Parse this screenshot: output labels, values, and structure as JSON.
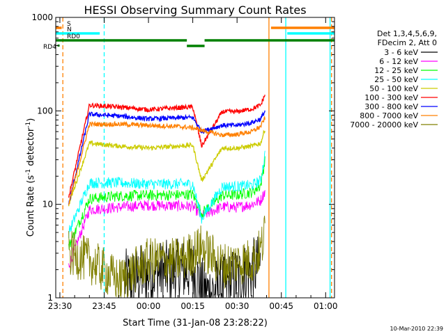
{
  "chart_data": {
    "type": "line",
    "title": "HESSI Observing Summary Count Rates",
    "xlabel": "Start Time (31-Jan-08 23:28:22)",
    "ylabel": "Count Rate (s",
    "ylabel_sup1": "-1",
    "ylabel_mid": " detector",
    "ylabel_sup2": "-1",
    "ylabel_end": ")",
    "yscale": "log",
    "ylim": [
      1,
      1000
    ],
    "xlim_minutes": [
      -1.4,
      93.0
    ],
    "x_ticks": [
      {
        "m": 0,
        "label": "23:30"
      },
      {
        "m": 15,
        "label": "23:45"
      },
      {
        "m": 30,
        "label": "00:00"
      },
      {
        "m": 45,
        "label": "00:15"
      },
      {
        "m": 60,
        "label": "00:30"
      },
      {
        "m": 75,
        "label": "00:45"
      },
      {
        "m": 90,
        "label": "01:00"
      }
    ],
    "y_ticks": [
      {
        "v": 1,
        "label": "1"
      },
      {
        "v": 10,
        "label": "10"
      },
      {
        "v": 100,
        "label": "100"
      },
      {
        "v": 1000,
        "label": "1000"
      }
    ],
    "legend_title": [
      "Det 1,3,4,5,6,9,",
      "FDecim 2, Att 0"
    ],
    "legend_placement": "right",
    "series": [
      {
        "name": "3 - 6 keV",
        "color": "#000000",
        "x": [
          22,
          30,
          45,
          49,
          55,
          60,
          68
        ],
        "y": [
          1.5,
          1.8,
          2.0,
          1.1,
          1.3,
          1.6,
          2.2
        ]
      },
      {
        "name": "6 - 12 keV",
        "color": "#ff00ff",
        "x": [
          3,
          10,
          20,
          30,
          40,
          45,
          48,
          55,
          60,
          65,
          68,
          69.5
        ],
        "y": [
          2.2,
          8.8,
          9.3,
          9.8,
          9.6,
          9.5,
          7.5,
          9.4,
          9.3,
          10,
          11,
          14
        ]
      },
      {
        "name": "12 - 25 keV",
        "color": "#00ff00",
        "x": [
          3,
          10,
          20,
          30,
          40,
          45,
          48,
          55,
          60,
          65,
          68,
          69.5
        ],
        "y": [
          3.5,
          11.5,
          12.3,
          12.5,
          12.6,
          12.8,
          8.0,
          12.5,
          12.6,
          13.5,
          16,
          30
        ]
      },
      {
        "name": "25 - 50 keV",
        "color": "#00ffff",
        "x": [
          3,
          10,
          20,
          30,
          40,
          45,
          48,
          55,
          60,
          65,
          68,
          69.5
        ],
        "y": [
          5.0,
          17,
          17,
          16.5,
          16.5,
          16.5,
          7.0,
          15.5,
          15.5,
          16,
          18,
          35
        ]
      },
      {
        "name": "50 - 100 keV",
        "color": "#cccc00",
        "x": [
          3,
          10,
          20,
          30,
          40,
          45,
          48,
          55,
          60,
          65,
          68,
          69.5
        ],
        "y": [
          10,
          45,
          42,
          40,
          42,
          43,
          18,
          40,
          40,
          42,
          45,
          65
        ]
      },
      {
        "name": "100 - 300 keV",
        "color": "#ff0000",
        "x": [
          3,
          10,
          20,
          30,
          40,
          45,
          48,
          55,
          60,
          65,
          68,
          69.5
        ],
        "y": [
          12,
          115,
          110,
          103,
          108,
          110,
          42,
          98,
          98,
          105,
          115,
          150
        ]
      },
      {
        "name": "300 - 800 keV",
        "color": "#0000ff",
        "x": [
          3,
          10,
          20,
          30,
          40,
          45,
          48,
          55,
          60,
          65,
          68,
          69.5
        ],
        "y": [
          10,
          92,
          88,
          82,
          84,
          85,
          60,
          70,
          70,
          75,
          82,
          100
        ]
      },
      {
        "name": "800 - 7000 keV",
        "color": "#ff8000",
        "x": [
          3,
          10,
          20,
          30,
          40,
          45,
          48,
          55,
          60,
          65,
          68,
          69.5
        ],
        "y": [
          10,
          72,
          72,
          70,
          68,
          66,
          62,
          55,
          56,
          60,
          68,
          85
        ]
      },
      {
        "name": "7000 - 20000 keV",
        "color": "#808000",
        "x": [
          3,
          10,
          20,
          30,
          40,
          45,
          48,
          55,
          60,
          65,
          68,
          69.5
        ],
        "y": [
          3.0,
          2.5,
          1.5,
          2.5,
          2.5,
          3.0,
          3.5,
          2.2,
          2.4,
          2.5,
          3.2,
          5.0
        ]
      }
    ],
    "flags": [
      {
        "label": "S",
        "color": "#ff8000",
        "segments": [
          [
            -1.4,
            0.6
          ],
          [
            71.5,
            93.0
          ]
        ]
      },
      {
        "label": "N",
        "color": "#00ffff",
        "segments": [
          [
            -1.4,
            13.5
          ],
          [
            77.0,
            93.0
          ]
        ]
      },
      {
        "label": "RD0",
        "color": "#008000",
        "segments": [
          [
            -1.4,
            43.0
          ],
          [
            49.0,
            93.0
          ]
        ]
      },
      {
        "label": "RD4",
        "color": "#008000",
        "segments": []
      }
    ],
    "vertical_lines": [
      {
        "m": 1.0,
        "color": "#ff8000",
        "style": "dashed"
      },
      {
        "m": 15.0,
        "color": "#00ffff",
        "style": "dashed"
      },
      {
        "m": 70.8,
        "color": "#ff8000",
        "style": "solid"
      },
      {
        "m": 76.5,
        "color": "#00ffff",
        "style": "solid"
      },
      {
        "m": 91.5,
        "color": "#00ffff",
        "style": "solid"
      },
      {
        "m": 92.0,
        "color": "#ff8000",
        "style": "dashed"
      }
    ]
  },
  "footer": {
    "timestamp": "10-Mar-2010 22:39"
  }
}
